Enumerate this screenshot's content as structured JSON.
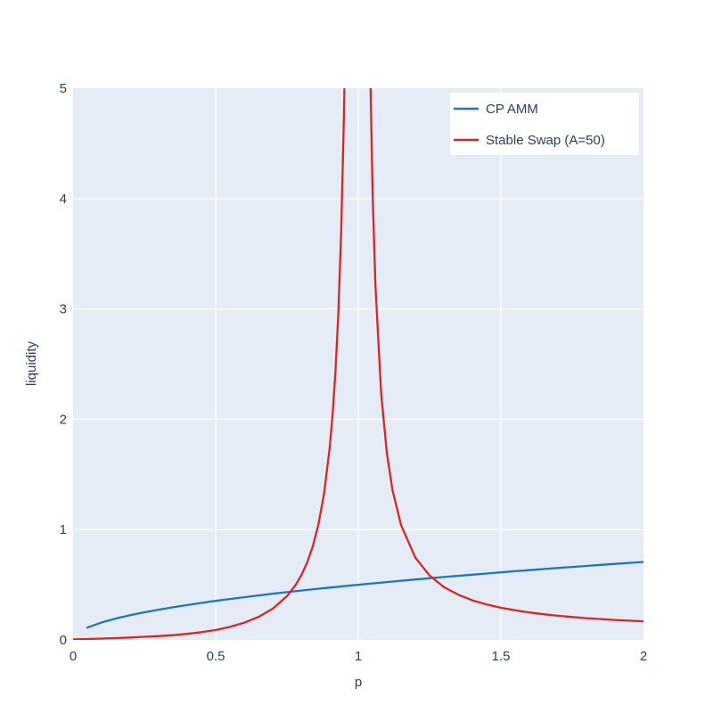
{
  "page": {
    "background": "#ffffff"
  },
  "chart_data": {
    "type": "line",
    "xlabel": "p",
    "ylabel": "liquidity",
    "xlim": [
      0,
      2
    ],
    "ylim": [
      0,
      5
    ],
    "x_ticks": [
      0,
      0.5,
      1,
      1.5,
      2
    ],
    "y_ticks": [
      0,
      1,
      2,
      3,
      4,
      5
    ],
    "grid": true,
    "plot_bg": "#e5ecf6",
    "grid_color": "#ffffff",
    "text_color": "#2a3f5f",
    "legend": {
      "position": "top-right-inside",
      "bg": "#ffffff"
    },
    "series": [
      {
        "name": "CP AMM",
        "color": "#1f77b4",
        "points": [
          [
            0.05,
            0.1118
          ],
          [
            0.1,
            0.1581
          ],
          [
            0.15,
            0.1936
          ],
          [
            0.2,
            0.2236
          ],
          [
            0.25,
            0.25
          ],
          [
            0.3,
            0.2739
          ],
          [
            0.35,
            0.2958
          ],
          [
            0.4,
            0.3162
          ],
          [
            0.45,
            0.3354
          ],
          [
            0.5,
            0.3536
          ],
          [
            0.55,
            0.3708
          ],
          [
            0.6,
            0.3873
          ],
          [
            0.65,
            0.4031
          ],
          [
            0.7,
            0.4183
          ],
          [
            0.75,
            0.433
          ],
          [
            0.8,
            0.4472
          ],
          [
            0.85,
            0.461
          ],
          [
            0.9,
            0.4743
          ],
          [
            0.95,
            0.4873
          ],
          [
            1,
            0.5
          ],
          [
            1.05,
            0.5123
          ],
          [
            1.1,
            0.5244
          ],
          [
            1.15,
            0.5362
          ],
          [
            1.2,
            0.5477
          ],
          [
            1.25,
            0.559
          ],
          [
            1.3,
            0.5701
          ],
          [
            1.35,
            0.5809
          ],
          [
            1.4,
            0.5916
          ],
          [
            1.45,
            0.6021
          ],
          [
            1.5,
            0.6124
          ],
          [
            1.55,
            0.6225
          ],
          [
            1.6,
            0.6325
          ],
          [
            1.65,
            0.6423
          ],
          [
            1.7,
            0.6519
          ],
          [
            1.75,
            0.6614
          ],
          [
            1.8,
            0.6708
          ],
          [
            1.85,
            0.6801
          ],
          [
            1.9,
            0.6892
          ],
          [
            1.95,
            0.6982
          ],
          [
            2,
            0.7071
          ]
        ]
      },
      {
        "name": "Stable Swap (A=50)",
        "color": "#d62728",
        "points": [
          [
            0,
            0.005
          ],
          [
            0.05,
            0.008
          ],
          [
            0.1,
            0.012
          ],
          [
            0.15,
            0.016
          ],
          [
            0.2,
            0.022
          ],
          [
            0.25,
            0.028
          ],
          [
            0.3,
            0.035
          ],
          [
            0.35,
            0.043
          ],
          [
            0.4,
            0.055
          ],
          [
            0.45,
            0.07
          ],
          [
            0.5,
            0.09
          ],
          [
            0.55,
            0.118
          ],
          [
            0.6,
            0.156
          ],
          [
            0.65,
            0.208
          ],
          [
            0.7,
            0.283
          ],
          [
            0.75,
            0.397
          ],
          [
            0.78,
            0.497
          ],
          [
            0.8,
            0.585
          ],
          [
            0.82,
            0.697
          ],
          [
            0.84,
            0.844
          ],
          [
            0.86,
            1.044
          ],
          [
            0.88,
            1.325
          ],
          [
            0.9,
            1.747
          ],
          [
            0.91,
            2.045
          ],
          [
            0.92,
            2.433
          ],
          [
            0.93,
            2.956
          ],
          [
            0.94,
            3.693
          ],
          [
            0.95,
            4.79
          ],
          [
            0.955,
            5.56
          ],
          [
            1.04,
            5.44
          ],
          [
            1.05,
            4.07
          ],
          [
            1.06,
            3.22
          ],
          [
            1.08,
            2.24
          ],
          [
            1.1,
            1.696
          ],
          [
            1.12,
            1.357
          ],
          [
            1.15,
            1.04
          ],
          [
            1.2,
            0.746
          ],
          [
            1.25,
            0.583
          ],
          [
            1.3,
            0.48
          ],
          [
            1.35,
            0.41
          ],
          [
            1.4,
            0.359
          ],
          [
            1.45,
            0.3212
          ],
          [
            1.5,
            0.2915
          ],
          [
            1.55,
            0.2679
          ],
          [
            1.6,
            0.2485
          ],
          [
            1.65,
            0.2325
          ],
          [
            1.7,
            0.219
          ],
          [
            1.75,
            0.2074
          ],
          [
            1.8,
            0.1974
          ],
          [
            1.85,
            0.1888
          ],
          [
            1.9,
            0.1811
          ],
          [
            1.95,
            0.1743
          ],
          [
            2,
            0.1683
          ]
        ]
      }
    ]
  }
}
